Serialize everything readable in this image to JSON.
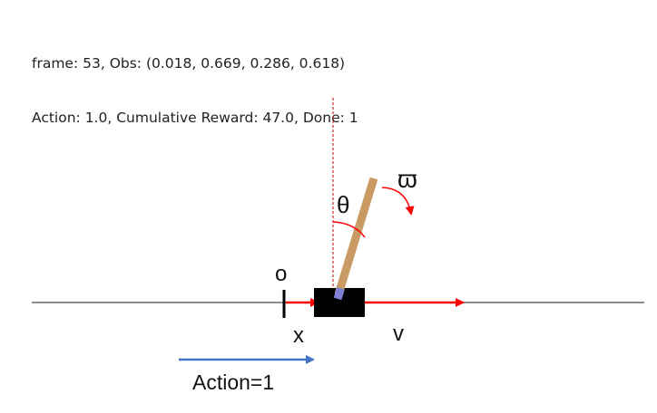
{
  "header": {
    "line1": "frame: 53, Obs: (0.018, 0.669, 0.286, 0.618)",
    "line2": "Action: 1.0, Cumulative Reward: 47.0, Done: 1"
  },
  "labels": {
    "origin": "o",
    "position": "x",
    "velocity": "v",
    "angle": "θ",
    "angular_velocity": "ϖ",
    "action": "Action=1"
  },
  "colors": {
    "track": "#8c8c8c",
    "cart": "#000000",
    "pole": "#c99a63",
    "axle": "#7f7fd6",
    "arrow_red": "#ff0000",
    "action_arrow": "#4472c4",
    "vertical_ref": "#c00000"
  }
}
